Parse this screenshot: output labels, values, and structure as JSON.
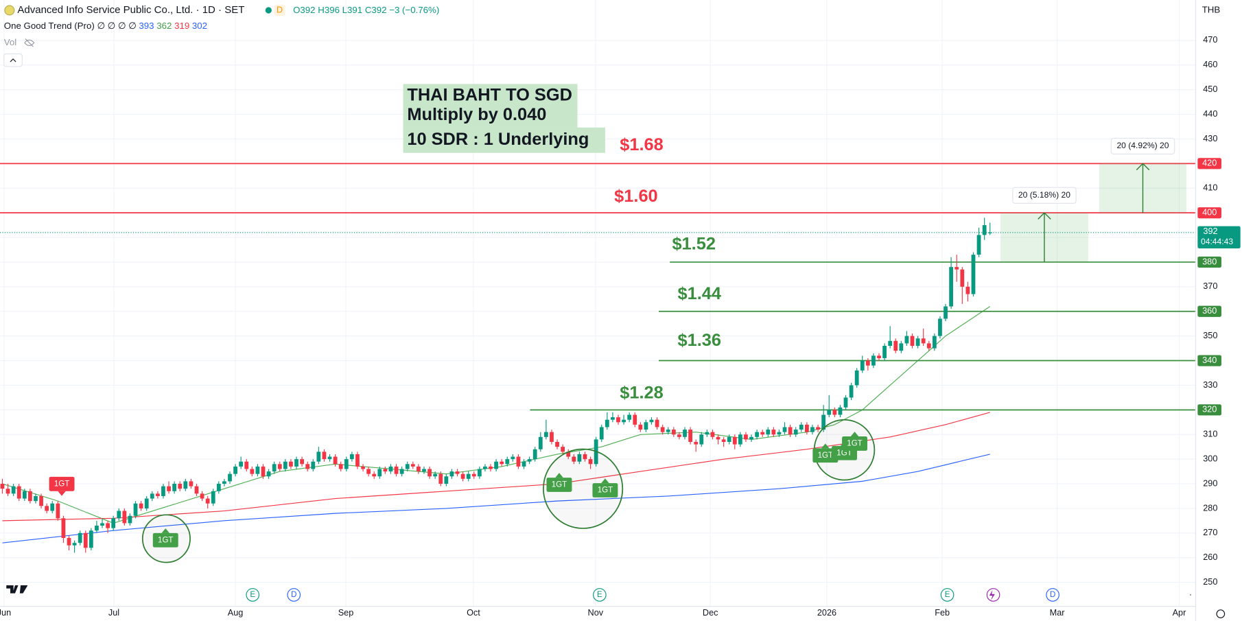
{
  "header": {
    "symbol": "Advanced Info Service Public Co., Ltd. · 1D · SET",
    "badge": "D",
    "o": "O392",
    "h": "H396",
    "l": "L391",
    "c": "C392",
    "change": "−3 (−0.76%)",
    "indicator": "One Good Trend (Pro)",
    "indicator_flags": "∅ ∅ ∅ ∅",
    "indicator_values": [
      "393",
      "362",
      "319",
      "302"
    ],
    "vol": "Vol",
    "currency": "THB"
  },
  "note": {
    "lines": [
      "THAI BAHT TO SGD",
      "Multiply by 0.040",
      "10 SDR : 1 Underlying"
    ]
  },
  "chart_data": {
    "type": "candlestick",
    "up_color": "#089981",
    "down_color": "#f23645",
    "grid": true,
    "xlim": [
      -0.43,
      215
    ],
    "ylim": [
      240.4,
      486.4
    ],
    "xticks": [
      {
        "value": 0.3,
        "label": "Jun"
      },
      {
        "value": 20.1,
        "label": "Jul"
      },
      {
        "value": 42,
        "label": "Aug"
      },
      {
        "value": 61.9,
        "label": "Sep"
      },
      {
        "value": 84.9,
        "label": "Oct"
      },
      {
        "value": 106.9,
        "label": "Nov"
      },
      {
        "value": 127.6,
        "label": "Dec"
      },
      {
        "value": 148.6,
        "label": "2026"
      },
      {
        "value": 169.4,
        "label": "Feb"
      },
      {
        "value": 190.1,
        "label": "Mar"
      },
      {
        "value": 212.1,
        "label": "Apr"
      }
    ],
    "yticks": [
      250,
      260,
      270,
      280,
      290,
      300,
      310,
      320,
      330,
      340,
      350,
      360,
      370,
      380,
      390,
      400,
      410,
      420,
      430,
      440,
      450,
      460,
      470
    ],
    "ohlc": [
      [
        290,
        292,
        286,
        288
      ],
      [
        288,
        290,
        285,
        286
      ],
      [
        286,
        290,
        285,
        289
      ],
      [
        289,
        290,
        283,
        284
      ],
      [
        284,
        288,
        283,
        287
      ],
      [
        287,
        288,
        282,
        283
      ],
      [
        283,
        286,
        282,
        285
      ],
      [
        285,
        286,
        280,
        281
      ],
      [
        281,
        282,
        278,
        279
      ],
      [
        279,
        283,
        278,
        282
      ],
      [
        282,
        283,
        275,
        276
      ],
      [
        276,
        277,
        266,
        268
      ],
      [
        268,
        269,
        263,
        265
      ],
      [
        265,
        267,
        262,
        266
      ],
      [
        266,
        271,
        265,
        270
      ],
      [
        270,
        271,
        262,
        264
      ],
      [
        264,
        272,
        263,
        271
      ],
      [
        271,
        275,
        270,
        273
      ],
      [
        273,
        276,
        272,
        274
      ],
      [
        274,
        275,
        270,
        272
      ],
      [
        272,
        277,
        271,
        276
      ],
      [
        276,
        280,
        275,
        279
      ],
      [
        279,
        280,
        273,
        274
      ],
      [
        274,
        278,
        273,
        277
      ],
      [
        277,
        283,
        276,
        282
      ],
      [
        282,
        283,
        279,
        280
      ],
      [
        280,
        285,
        279,
        284
      ],
      [
        284,
        287,
        283,
        286
      ],
      [
        286,
        287,
        284,
        285
      ],
      [
        285,
        290,
        284,
        289
      ],
      [
        289,
        291,
        286,
        287
      ],
      [
        287,
        291,
        286,
        290
      ],
      [
        290,
        291,
        287,
        288
      ],
      [
        288,
        292,
        287,
        291
      ],
      [
        291,
        292,
        288,
        289
      ],
      [
        289,
        290,
        285,
        286
      ],
      [
        286,
        287,
        283,
        284
      ],
      [
        284,
        285,
        280,
        282
      ],
      [
        282,
        288,
        281,
        287
      ],
      [
        287,
        291,
        286,
        290
      ],
      [
        290,
        292,
        289,
        291
      ],
      [
        291,
        295,
        290,
        294
      ],
      [
        294,
        298,
        293,
        297
      ],
      [
        297,
        301,
        296,
        299
      ],
      [
        299,
        300,
        295,
        296
      ],
      [
        296,
        297,
        293,
        294
      ],
      [
        294,
        298,
        293,
        297
      ],
      [
        297,
        298,
        292,
        293
      ],
      [
        293,
        296,
        292,
        295
      ],
      [
        295,
        299,
        294,
        298
      ],
      [
        298,
        299,
        295,
        296
      ],
      [
        296,
        300,
        295,
        299
      ],
      [
        299,
        300,
        296,
        297
      ],
      [
        297,
        301,
        296,
        300
      ],
      [
        300,
        301,
        297,
        298
      ],
      [
        298,
        299,
        295,
        296
      ],
      [
        296,
        300,
        295,
        299
      ],
      [
        299,
        305,
        298,
        303
      ],
      [
        303,
        304,
        299,
        300
      ],
      [
        300,
        302,
        299,
        301
      ],
      [
        301,
        302,
        297,
        298
      ],
      [
        298,
        299,
        295,
        296
      ],
      [
        296,
        301,
        295,
        300
      ],
      [
        300,
        303,
        299,
        302
      ],
      [
        302,
        303,
        296,
        297
      ],
      [
        297,
        298,
        295,
        296
      ],
      [
        296,
        297,
        293,
        294
      ],
      [
        294,
        295,
        292,
        293
      ],
      [
        293,
        297,
        292,
        296
      ],
      [
        296,
        297,
        294,
        295
      ],
      [
        295,
        298,
        294,
        297
      ],
      [
        297,
        298,
        293,
        294
      ],
      [
        294,
        297,
        293,
        296
      ],
      [
        296,
        299,
        295,
        298
      ],
      [
        298,
        299,
        296,
        297
      ],
      [
        297,
        298,
        294,
        295
      ],
      [
        295,
        297,
        294,
        296
      ],
      [
        296,
        297,
        292,
        293
      ],
      [
        293,
        295,
        292,
        294
      ],
      [
        294,
        295,
        289,
        290
      ],
      [
        290,
        294,
        289,
        293
      ],
      [
        293,
        296,
        292,
        295
      ],
      [
        295,
        296,
        293,
        294
      ],
      [
        294,
        295,
        291,
        292
      ],
      [
        292,
        295,
        291,
        294
      ],
      [
        294,
        295,
        292,
        293
      ],
      [
        293,
        297,
        292,
        296
      ],
      [
        296,
        298,
        295,
        297
      ],
      [
        297,
        298,
        295,
        296
      ],
      [
        296,
        300,
        295,
        299
      ],
      [
        299,
        300,
        297,
        298
      ],
      [
        298,
        301,
        297,
        300
      ],
      [
        300,
        302,
        299,
        301
      ],
      [
        301,
        302,
        296,
        297
      ],
      [
        297,
        300,
        296,
        299
      ],
      [
        299,
        301,
        298,
        300
      ],
      [
        300,
        305,
        299,
        304
      ],
      [
        304,
        311,
        303,
        309
      ],
      [
        309,
        316,
        308,
        311
      ],
      [
        311,
        312,
        306,
        307
      ],
      [
        307,
        308,
        304,
        305
      ],
      [
        305,
        306,
        302,
        303
      ],
      [
        303,
        304,
        300,
        301
      ],
      [
        301,
        302,
        298,
        299
      ],
      [
        299,
        303,
        298,
        302
      ],
      [
        302,
        303,
        299,
        300
      ],
      [
        300,
        301,
        296,
        298
      ],
      [
        298,
        309,
        297,
        308
      ],
      [
        308,
        314,
        307,
        313
      ],
      [
        313,
        319,
        312,
        316
      ],
      [
        316,
        319,
        315,
        317
      ],
      [
        317,
        318,
        314,
        315
      ],
      [
        315,
        318,
        314,
        316
      ],
      [
        316,
        319,
        315,
        318
      ],
      [
        318,
        319,
        313,
        314
      ],
      [
        314,
        315,
        311,
        312
      ],
      [
        312,
        316,
        311,
        315
      ],
      [
        315,
        317,
        314,
        316
      ],
      [
        316,
        317,
        312,
        313
      ],
      [
        313,
        314,
        310,
        311
      ],
      [
        311,
        313,
        310,
        312
      ],
      [
        312,
        313,
        309,
        310
      ],
      [
        310,
        311,
        308,
        309
      ],
      [
        309,
        313,
        308,
        312
      ],
      [
        312,
        313,
        306,
        307
      ],
      [
        307,
        308,
        303,
        306
      ],
      [
        306,
        311,
        305,
        310
      ],
      [
        310,
        312,
        309,
        311
      ],
      [
        311,
        312,
        308,
        309
      ],
      [
        309,
        310,
        306,
        308
      ],
      [
        308,
        309,
        305,
        307
      ],
      [
        307,
        310,
        306,
        309
      ],
      [
        309,
        310,
        304,
        306
      ],
      [
        306,
        311,
        305,
        310
      ],
      [
        310,
        311,
        307,
        308
      ],
      [
        308,
        310,
        307,
        309
      ],
      [
        309,
        312,
        308,
        311
      ],
      [
        311,
        312,
        309,
        310
      ],
      [
        310,
        313,
        309,
        312
      ],
      [
        312,
        313,
        309,
        310
      ],
      [
        310,
        312,
        309,
        311
      ],
      [
        311,
        315,
        310,
        313
      ],
      [
        313,
        314,
        309,
        310
      ],
      [
        310,
        313,
        309,
        312
      ],
      [
        312,
        315,
        311,
        314
      ],
      [
        314,
        315,
        310,
        311
      ],
      [
        311,
        314,
        310,
        313
      ],
      [
        313,
        314,
        311,
        312
      ],
      [
        312,
        322,
        311,
        318
      ],
      [
        318,
        326,
        317,
        320
      ],
      [
        320,
        321,
        317,
        318
      ],
      [
        318,
        322,
        317,
        321
      ],
      [
        321,
        326,
        320,
        325
      ],
      [
        325,
        331,
        324,
        330
      ],
      [
        330,
        337,
        329,
        336
      ],
      [
        336,
        342,
        335,
        340
      ],
      [
        340,
        341,
        336,
        338
      ],
      [
        338,
        343,
        337,
        342
      ],
      [
        342,
        343,
        340,
        341
      ],
      [
        341,
        347,
        340,
        346
      ],
      [
        346,
        354,
        345,
        348
      ],
      [
        348,
        349,
        343,
        344
      ],
      [
        344,
        348,
        343,
        347
      ],
      [
        347,
        352,
        346,
        350
      ],
      [
        350,
        351,
        345,
        346
      ],
      [
        346,
        350,
        345,
        349
      ],
      [
        349,
        353,
        346,
        347
      ],
      [
        347,
        348,
        344,
        345
      ],
      [
        345,
        351,
        344,
        350
      ],
      [
        350,
        358,
        349,
        357
      ],
      [
        357,
        363,
        356,
        362
      ],
      [
        362,
        382,
        361,
        378
      ],
      [
        378,
        383,
        372,
        377
      ],
      [
        377,
        378,
        363,
        370
      ],
      [
        370,
        372,
        364,
        367
      ],
      [
        367,
        384,
        366,
        383
      ],
      [
        383,
        394,
        382,
        391
      ],
      [
        391,
        398,
        389,
        395
      ],
      [
        392,
        396,
        391,
        392
      ]
    ],
    "lines": [
      {
        "color": "#4caf50",
        "x": [
          0,
          10,
          20,
          30,
          40,
          50,
          60,
          70,
          80,
          90,
          100,
          108,
          115,
          125,
          135,
          145,
          150,
          155,
          160,
          165,
          170,
          178
        ],
        "values": [
          290,
          283,
          274,
          281,
          288,
          295,
          298,
          296,
          294,
          297,
          302,
          305,
          310,
          311,
          308,
          311,
          314,
          320,
          330,
          340,
          350,
          362
        ]
      },
      {
        "color": "#f23645",
        "x": [
          0,
          20,
          40,
          60,
          80,
          100,
          115,
          130,
          145,
          160,
          170,
          178
        ],
        "values": [
          275,
          276,
          279,
          284,
          287,
          290,
          295,
          300,
          304,
          309,
          314,
          319
        ]
      },
      {
        "color": "#2962ff",
        "x": [
          0,
          20,
          40,
          60,
          80,
          100,
          120,
          140,
          155,
          165,
          178
        ],
        "values": [
          266,
          271,
          275,
          278,
          280,
          283,
          285,
          288,
          291,
          295,
          302
        ]
      }
    ],
    "levels": [
      {
        "value": 420,
        "label": "$1.68",
        "color": "#f23645"
      },
      {
        "value": 400,
        "label": "$1.60",
        "color": "#f23645"
      },
      {
        "value": 380,
        "label": "$1.52",
        "color": "#388e3c",
        "x_start": 120.3
      },
      {
        "value": 360,
        "label": "$1.44",
        "color": "#388e3c",
        "x_start": 118.3
      },
      {
        "value": 340,
        "label": "$1.36",
        "color": "#388e3c",
        "x_start": 118.3
      },
      {
        "value": 320,
        "label": "$1.28",
        "color": "#388e3c",
        "x_start": 95.1
      }
    ],
    "measures": [
      {
        "from": 380,
        "to": 400,
        "label": "20 (5.18%) 20"
      },
      {
        "from": 400,
        "to": 420,
        "label": "20 (4.92%) 20"
      }
    ],
    "countdown": "04:44:43",
    "signals": [
      {
        "label": "1GT",
        "color": "#f23645"
      },
      {
        "label": "1GT",
        "color": "#43a047"
      },
      {
        "label": "1GT",
        "color": "#43a047"
      },
      {
        "label": "1GT",
        "color": "#43a047"
      },
      {
        "label": "1GT",
        "color": "#43a047"
      },
      {
        "label": "1GT",
        "color": "#43a047"
      },
      {
        "label": "1GT",
        "color": "#43a047"
      }
    ],
    "events": [
      "E",
      "D",
      "E",
      "E",
      "D"
    ]
  }
}
